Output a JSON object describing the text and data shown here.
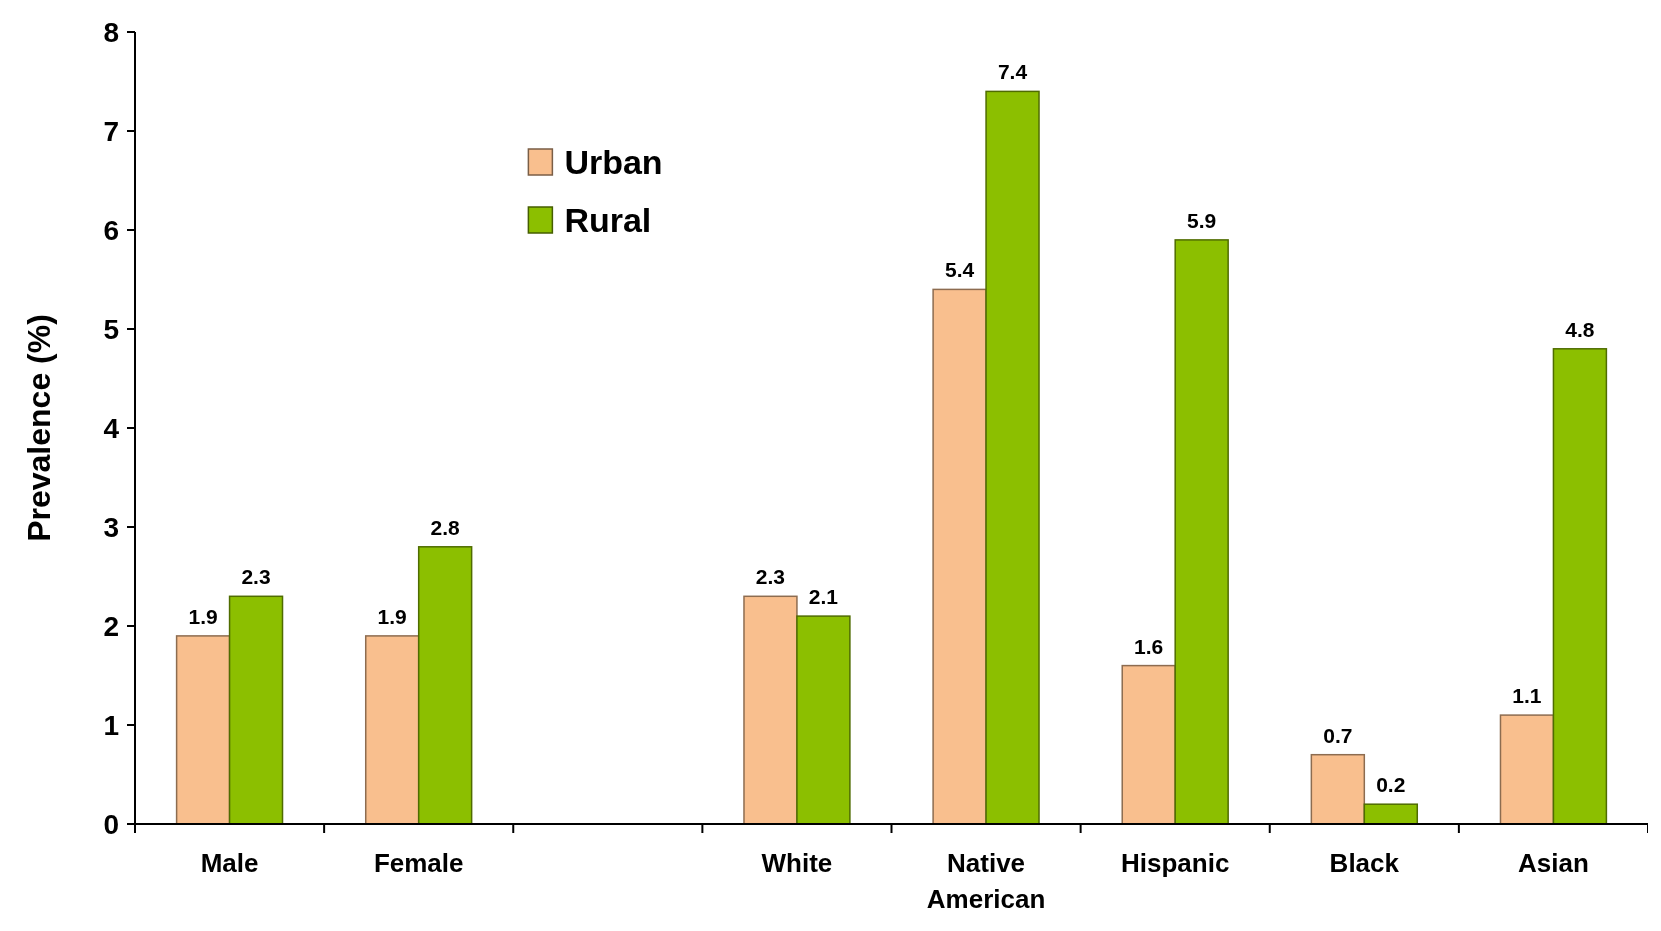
{
  "chart_data": {
    "type": "bar",
    "ylabel": "Prevalence (%)",
    "categories": [
      "Male",
      "Female",
      null,
      "White",
      "Native American",
      "Hispanic",
      "Black",
      "Asian"
    ],
    "series": [
      {
        "name": "Urban",
        "color": "#f9bf8e",
        "values": [
          1.9,
          1.9,
          null,
          2.3,
          5.4,
          1.6,
          0.7,
          1.1
        ]
      },
      {
        "name": "Rural",
        "color": "#8cbf00",
        "values": [
          2.3,
          2.8,
          null,
          2.1,
          7.4,
          5.9,
          0.2,
          4.8
        ]
      }
    ],
    "ylim": [
      0,
      8
    ],
    "yticks": [
      0,
      1,
      2,
      3,
      4,
      5,
      6,
      7,
      8
    ],
    "grid": false,
    "legend": "top left",
    "data_labels": true
  }
}
